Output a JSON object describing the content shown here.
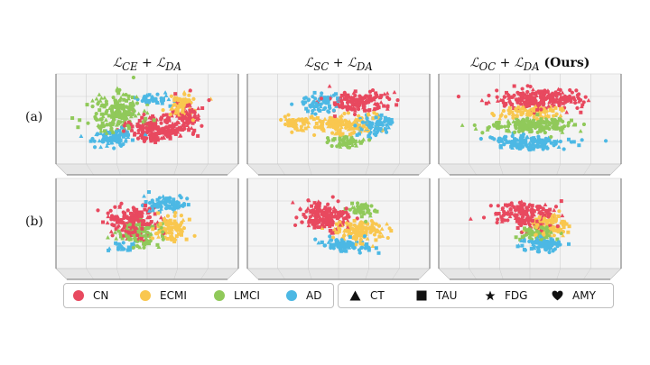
{
  "column_titles": [
    {
      "main": "ℒ",
      "sub": "CE",
      "plus": " + ℒ",
      "sub2": "DA",
      "bold": ""
    },
    {
      "main": "ℒ",
      "sub": "SC",
      "plus": " + ℒ",
      "sub2": "DA",
      "bold": ""
    },
    {
      "main": "ℒ",
      "sub": "OC",
      "plus": " + ℒ",
      "sub2": "DA",
      "bold": " (Ours)"
    }
  ],
  "row_labels": [
    "(a)",
    "(b)"
  ],
  "legend_classes": [
    {
      "label": "CN",
      "color": "#e8495f"
    },
    {
      "label": "ECMI",
      "color": "#f9c74f"
    },
    {
      "label": "LMCI",
      "color": "#90c95a"
    },
    {
      "label": "AD",
      "color": "#4cb8e4"
    }
  ],
  "legend_modalities": [
    {
      "label": "CT",
      "shape": "triangle"
    },
    {
      "label": "TAU",
      "shape": "square"
    },
    {
      "label": "FDG",
      "shape": "star"
    },
    {
      "label": "AMY",
      "shape": "heart"
    }
  ],
  "chart_data": [
    {
      "type": "scatter",
      "row": "(a)",
      "title": "ℒCE + ℒDA",
      "dims": 3,
      "clusters": [
        {
          "class": "LMCI",
          "cx": 0.32,
          "cy": 0.4,
          "sx": 0.13,
          "sy": 0.2,
          "n": 190
        },
        {
          "class": "CN",
          "cx": 0.55,
          "cy": 0.6,
          "sx": 0.15,
          "sy": 0.13,
          "n": 210
        },
        {
          "class": "CN",
          "cx": 0.72,
          "cy": 0.45,
          "sx": 0.08,
          "sy": 0.15,
          "n": 80
        },
        {
          "class": "ECMI",
          "cx": 0.7,
          "cy": 0.32,
          "sx": 0.06,
          "sy": 0.12,
          "n": 70
        },
        {
          "class": "AD",
          "cx": 0.3,
          "cy": 0.7,
          "sx": 0.1,
          "sy": 0.08,
          "n": 90
        },
        {
          "class": "AD",
          "cx": 0.55,
          "cy": 0.25,
          "sx": 0.08,
          "sy": 0.06,
          "n": 40
        }
      ]
    },
    {
      "type": "scatter",
      "row": "(a)",
      "title": "ℒSC + ℒDA",
      "dims": 3,
      "clusters": [
        {
          "class": "CN",
          "cx": 0.62,
          "cy": 0.28,
          "sx": 0.16,
          "sy": 0.1,
          "n": 150
        },
        {
          "class": "ECMI",
          "cx": 0.52,
          "cy": 0.55,
          "sx": 0.16,
          "sy": 0.1,
          "n": 140
        },
        {
          "class": "ECMI",
          "cx": 0.25,
          "cy": 0.52,
          "sx": 0.08,
          "sy": 0.06,
          "n": 50
        },
        {
          "class": "AD",
          "cx": 0.4,
          "cy": 0.28,
          "sx": 0.09,
          "sy": 0.1,
          "n": 70
        },
        {
          "class": "AD",
          "cx": 0.7,
          "cy": 0.55,
          "sx": 0.1,
          "sy": 0.1,
          "n": 80
        },
        {
          "class": "LMCI",
          "cx": 0.55,
          "cy": 0.74,
          "sx": 0.09,
          "sy": 0.06,
          "n": 50
        }
      ]
    },
    {
      "type": "scatter",
      "row": "(a)",
      "title": "ℒOC + ℒDA (Ours)",
      "dims": 3,
      "clusters": [
        {
          "class": "CN",
          "cx": 0.55,
          "cy": 0.25,
          "sx": 0.22,
          "sy": 0.1,
          "n": 240
        },
        {
          "class": "ECMI",
          "cx": 0.5,
          "cy": 0.4,
          "sx": 0.18,
          "sy": 0.06,
          "n": 90
        },
        {
          "class": "LMCI",
          "cx": 0.52,
          "cy": 0.55,
          "sx": 0.2,
          "sy": 0.07,
          "n": 170
        },
        {
          "class": "AD",
          "cx": 0.5,
          "cy": 0.75,
          "sx": 0.18,
          "sy": 0.07,
          "n": 150
        }
      ]
    },
    {
      "type": "scatter",
      "row": "(b)",
      "title": "ℒCE + ℒDA",
      "dims": 3,
      "clusters": [
        {
          "class": "CN",
          "cx": 0.42,
          "cy": 0.45,
          "sx": 0.13,
          "sy": 0.14,
          "n": 170
        },
        {
          "class": "ECMI",
          "cx": 0.63,
          "cy": 0.55,
          "sx": 0.09,
          "sy": 0.12,
          "n": 90
        },
        {
          "class": "LMCI",
          "cx": 0.45,
          "cy": 0.6,
          "sx": 0.1,
          "sy": 0.12,
          "n": 100
        },
        {
          "class": "AD",
          "cx": 0.6,
          "cy": 0.25,
          "sx": 0.1,
          "sy": 0.08,
          "n": 80
        },
        {
          "class": "AD",
          "cx": 0.35,
          "cy": 0.75,
          "sx": 0.06,
          "sy": 0.05,
          "n": 25
        }
      ]
    },
    {
      "type": "scatter",
      "row": "(b)",
      "title": "ℒSC + ℒDA",
      "dims": 3,
      "clusters": [
        {
          "class": "CN",
          "cx": 0.42,
          "cy": 0.4,
          "sx": 0.13,
          "sy": 0.14,
          "n": 170
        },
        {
          "class": "ECMI",
          "cx": 0.63,
          "cy": 0.55,
          "sx": 0.12,
          "sy": 0.1,
          "n": 130
        },
        {
          "class": "LMCI",
          "cx": 0.64,
          "cy": 0.32,
          "sx": 0.08,
          "sy": 0.07,
          "n": 50
        },
        {
          "class": "AD",
          "cx": 0.55,
          "cy": 0.72,
          "sx": 0.12,
          "sy": 0.07,
          "n": 90
        }
      ]
    },
    {
      "type": "scatter",
      "row": "(b)",
      "title": "ℒOC + ℒDA (Ours)",
      "dims": 3,
      "clusters": [
        {
          "class": "CN",
          "cx": 0.48,
          "cy": 0.38,
          "sx": 0.15,
          "sy": 0.12,
          "n": 170
        },
        {
          "class": "ECMI",
          "cx": 0.62,
          "cy": 0.5,
          "sx": 0.1,
          "sy": 0.1,
          "n": 90
        },
        {
          "class": "LMCI",
          "cx": 0.55,
          "cy": 0.58,
          "sx": 0.1,
          "sy": 0.08,
          "n": 70
        },
        {
          "class": "AD",
          "cx": 0.58,
          "cy": 0.72,
          "sx": 0.1,
          "sy": 0.07,
          "n": 90
        }
      ]
    }
  ]
}
